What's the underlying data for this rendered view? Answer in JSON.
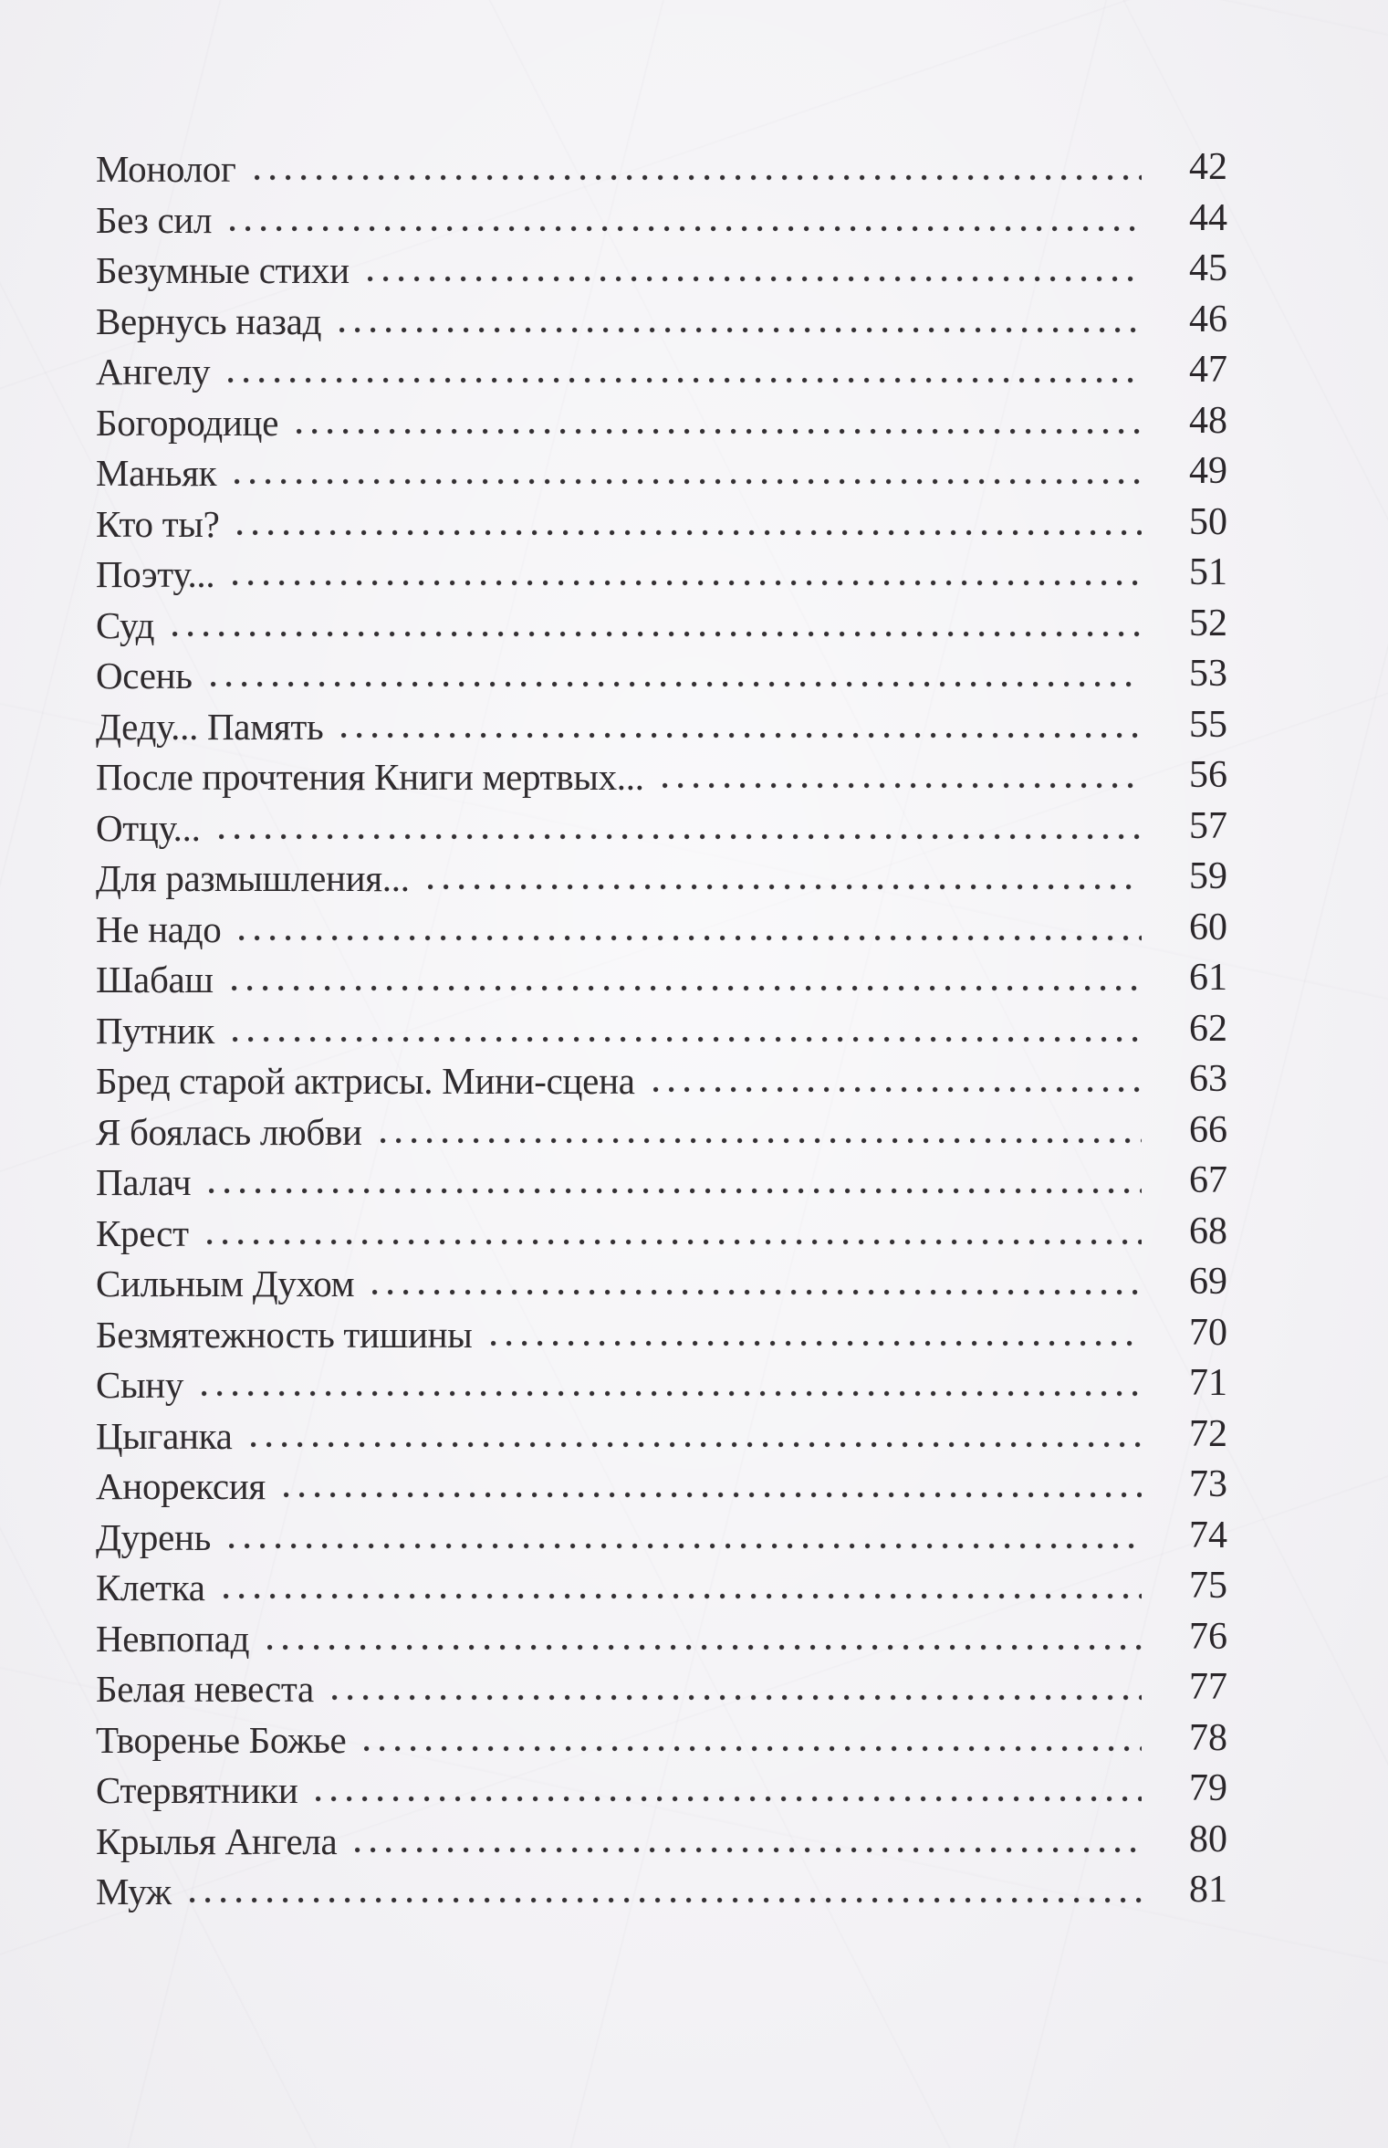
{
  "page": {
    "kind": "book-table-of-contents",
    "language": "ru",
    "paper_color": "#f4f3f6",
    "text_color": "#2f2b2e"
  },
  "toc": {
    "entries": [
      {
        "title": "Монолог",
        "page": "42"
      },
      {
        "title": "Без сил",
        "page": "44"
      },
      {
        "title": "Безумные стихи",
        "page": "45"
      },
      {
        "title": "Вернусь назад",
        "page": "46"
      },
      {
        "title": "Ангелу",
        "page": "47"
      },
      {
        "title": "Богородице",
        "page": "48"
      },
      {
        "title": "Маньяк",
        "page": "49"
      },
      {
        "title": "Кто ты?",
        "page": "50"
      },
      {
        "title": "Поэту...",
        "page": "51"
      },
      {
        "title": "Суд",
        "page": "52"
      },
      {
        "title": "Осень",
        "page": "53"
      },
      {
        "title": "Деду... Память",
        "page": "55"
      },
      {
        "title": "После прочтения Книги мертвых...",
        "page": "56"
      },
      {
        "title": "Отцу...",
        "page": "57"
      },
      {
        "title": "Для размышления...",
        "page": "59"
      },
      {
        "title": "Не надо",
        "page": "60"
      },
      {
        "title": "Шабаш",
        "page": "61"
      },
      {
        "title": "Путник",
        "page": "62"
      },
      {
        "title": "Бред старой актрисы. Мини-сцена",
        "page": "63"
      },
      {
        "title": "Я боялась любви",
        "page": "66"
      },
      {
        "title": "Палач",
        "page": "67"
      },
      {
        "title": "Крест",
        "page": "68"
      },
      {
        "title": "Сильным Духом",
        "page": "69"
      },
      {
        "title": "Безмятежность тишины",
        "page": "70"
      },
      {
        "title": "Сыну",
        "page": "71"
      },
      {
        "title": "Цыганка",
        "page": "72"
      },
      {
        "title": "Анорексия",
        "page": "73"
      },
      {
        "title": "Дурень",
        "page": "74"
      },
      {
        "title": "Клетка",
        "page": "75"
      },
      {
        "title": "Невпопад",
        "page": "76"
      },
      {
        "title": "Белая невеста",
        "page": "77"
      },
      {
        "title": "Творенье Божье",
        "page": "78"
      },
      {
        "title": "Стервятники",
        "page": "79"
      },
      {
        "title": "Крылья Ангела",
        "page": "80"
      },
      {
        "title": "Муж",
        "page": "81"
      }
    ]
  }
}
